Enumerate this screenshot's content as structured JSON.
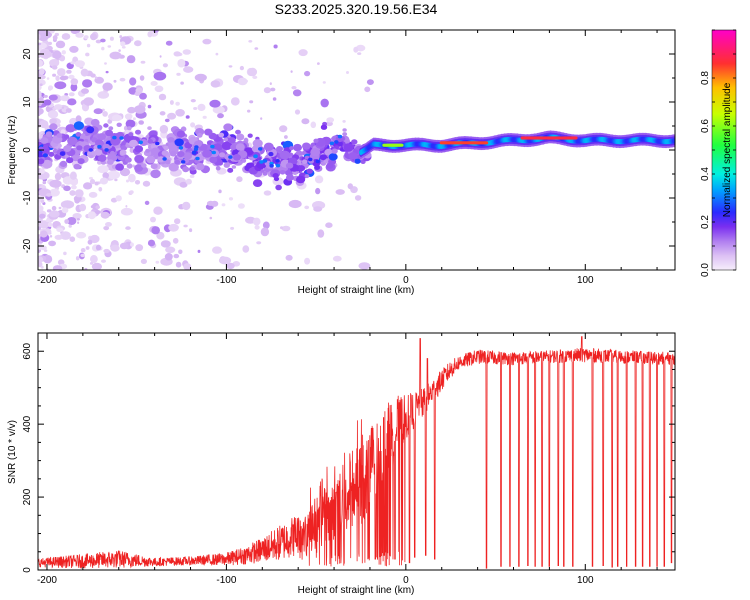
{
  "figure_title": "S233.2025.320.19.56.E34",
  "colors": {
    "snr_line": "#ee2222",
    "colormap": [
      "#f6eefb",
      "#dcc0f4",
      "#b07ef0",
      "#7a2ff0",
      "#2a2aff",
      "#00a0ff",
      "#00f0e0",
      "#20ff40",
      "#c8ff00",
      "#ffc000",
      "#ff3030",
      "#ff00c8"
    ]
  },
  "chart_data": [
    {
      "id": "spectrogram",
      "type": "heatmap",
      "title": "S233.2025.320.19.56.E34",
      "xlabel": "Height of straight line (km)",
      "ylabel": "Frequency (Hz)",
      "xlim": [
        -205,
        150
      ],
      "ylim": [
        -25,
        25
      ],
      "xticks": [
        -200,
        -100,
        0,
        100
      ],
      "yticks": [
        -20,
        -10,
        0,
        10,
        20
      ],
      "xtick_labels": [
        "-200",
        "-100",
        "0",
        "100"
      ],
      "ytick_labels": [
        "-20",
        "-10",
        "0",
        "10",
        "20"
      ],
      "colorbar": {
        "label": "Normalized spectral amplitude",
        "range": [
          0,
          1
        ],
        "ticks": [
          0,
          0.2,
          0.4,
          0.6,
          0.8
        ],
        "tick_labels": [
          "0.0",
          "0.2",
          "0.4",
          "0.6",
          "0.8"
        ]
      },
      "ridge": {
        "x": [
          -205,
          -180,
          -160,
          -140,
          -120,
          -100,
          -80,
          -60,
          -45,
          -35,
          -28,
          -22,
          -18,
          -10,
          0,
          10,
          20,
          40,
          60,
          80,
          100,
          120,
          150
        ],
        "freq": [
          0,
          1,
          1,
          0,
          0,
          0,
          -2,
          -3,
          0,
          2,
          -1,
          0,
          1,
          1,
          1,
          1,
          1,
          1.5,
          2,
          2.5,
          2,
          2,
          2
        ]
      },
      "band_segments": [
        {
          "x_start": -22,
          "x_end": 150,
          "freq": 1.5,
          "level": 0.45
        },
        {
          "x_start": 20,
          "x_end": 45,
          "freq": 1.5,
          "level": 0.9
        },
        {
          "x_start": 65,
          "x_end": 95,
          "freq": 2.5,
          "level": 0.92
        },
        {
          "x_start": -12,
          "x_end": -2,
          "freq": 1,
          "level": 0.7
        }
      ]
    },
    {
      "id": "snr",
      "type": "line",
      "xlabel": "Height of straight line (km)",
      "ylabel": "SNR (10 * v/v)",
      "xlim": [
        -205,
        150
      ],
      "ylim": [
        0,
        650
      ],
      "xticks": [
        -200,
        -100,
        0,
        100
      ],
      "yticks": [
        0,
        200,
        400,
        600
      ],
      "xtick_labels": [
        "-200",
        "-100",
        "0",
        "100"
      ],
      "ytick_labels": [
        "0",
        "200",
        "400",
        "600"
      ],
      "series": [
        {
          "name": "SNR",
          "envelope_x": [
            -205,
            -180,
            -160,
            -140,
            -120,
            -100,
            -90,
            -80,
            -70,
            -60,
            -50,
            -40,
            -30,
            -20,
            -15,
            -10,
            -5,
            0,
            5,
            10,
            15,
            20,
            25,
            30,
            40,
            60,
            80,
            100,
            120,
            150
          ],
          "envelope_mean": [
            20,
            24,
            30,
            22,
            25,
            30,
            40,
            55,
            75,
            100,
            130,
            170,
            220,
            270,
            310,
            360,
            390,
            420,
            440,
            460,
            490,
            520,
            550,
            570,
            585,
            580,
            585,
            590,
            585,
            580
          ],
          "envelope_spread": [
            12,
            20,
            25,
            12,
            12,
            18,
            25,
            35,
            50,
            60,
            75,
            90,
            110,
            130,
            120,
            100,
            90,
            60,
            50,
            40,
            35,
            30,
            25,
            20,
            20,
            18,
            18,
            20,
            18,
            18
          ],
          "dropouts_x": [
            -17,
            -12,
            -6,
            2,
            5,
            8,
            11,
            16,
            45,
            53,
            58,
            63,
            68,
            72,
            76,
            80,
            85,
            88,
            93,
            98,
            104,
            110,
            115,
            118,
            123,
            128,
            132,
            136,
            140,
            144,
            148
          ],
          "dropouts_y": [
            30,
            40,
            30,
            20,
            35,
            25,
            40,
            30,
            5,
            10,
            10,
            10,
            12,
            10,
            10,
            10,
            12,
            10,
            10,
            10,
            10,
            12,
            8,
            10,
            10,
            10,
            10,
            10,
            10,
            10,
            20
          ],
          "spikes_x": [
            8,
            12,
            98
          ],
          "spikes_y": [
            635,
            580,
            640
          ]
        }
      ]
    }
  ]
}
